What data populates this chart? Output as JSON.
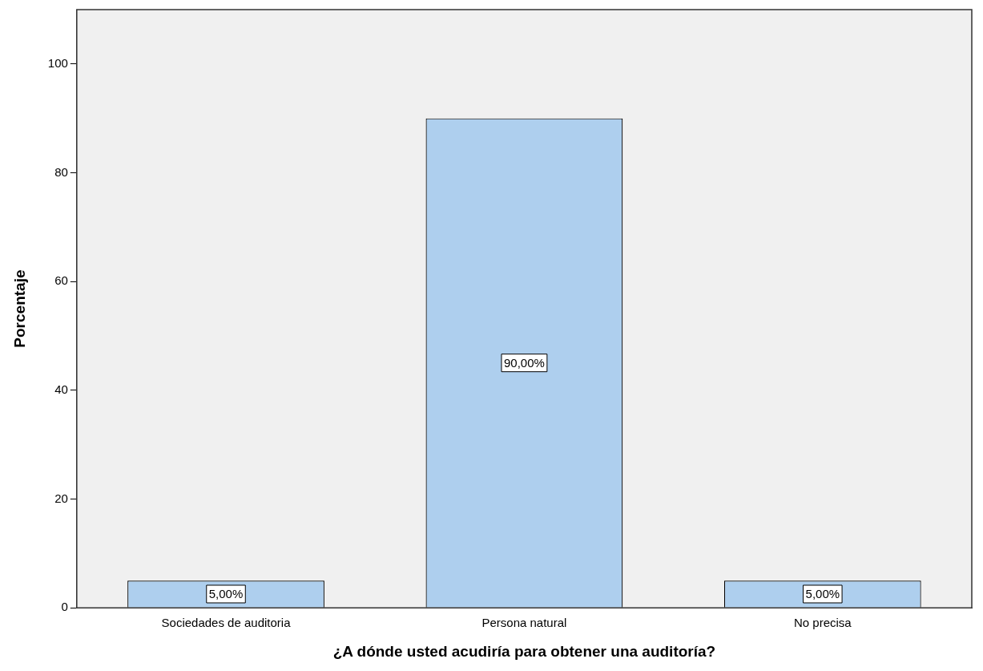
{
  "chart_data": {
    "type": "bar",
    "xlabel": "¿A dónde usted acudiría para obtener una auditoría?",
    "ylabel": "Porcentaje",
    "categories": [
      "Sociedades de auditoria",
      "Persona natural",
      "No precisa"
    ],
    "values": [
      5,
      90,
      5
    ],
    "color": "#aecfee",
    "value_labels": [
      "5,00%",
      "90,00%",
      "5,00%"
    ],
    "ylim": [
      0,
      110
    ],
    "yticks": [
      0,
      20,
      40,
      60,
      80,
      100
    ],
    "grid": false,
    "legend": false
  }
}
